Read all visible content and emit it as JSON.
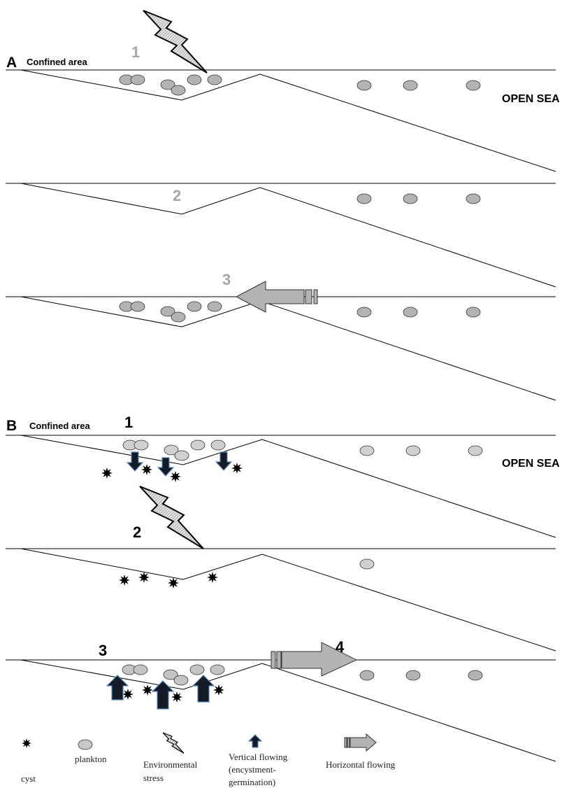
{
  "panel_a": {
    "label": "A",
    "confined_label": "Confined area",
    "open_sea": "OPEN SEA",
    "steps": [
      "1",
      "2",
      "3"
    ]
  },
  "panel_b": {
    "label": "B",
    "confined_label": "Confined area",
    "open_sea": "OPEN SEA",
    "steps": [
      "1",
      "2",
      "3",
      "4"
    ]
  },
  "legend": {
    "cyst": "cyst",
    "plankton": "plankton",
    "environmental_stress": [
      "Environmental",
      "stress"
    ],
    "vertical_flowing": [
      "Vertical flowing",
      "(encystment-",
      "germination)"
    ],
    "horizontal_flowing": "Horizontal flowing"
  }
}
